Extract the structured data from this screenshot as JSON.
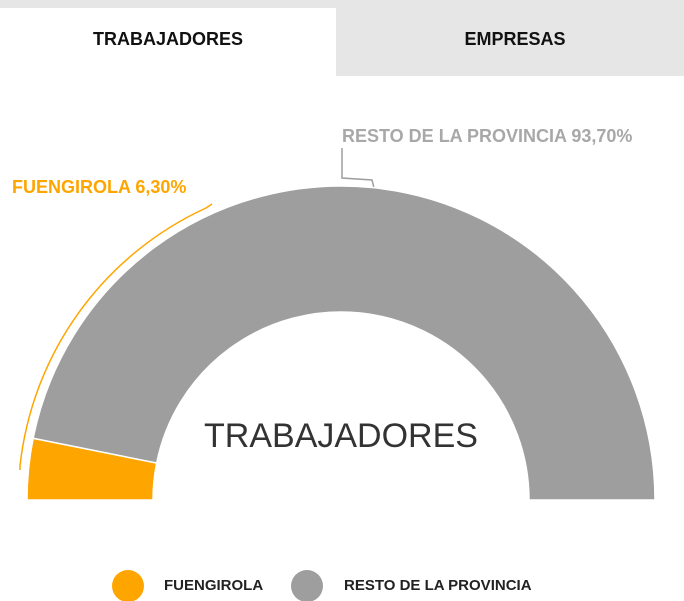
{
  "tabs": [
    "TRABAJADORES",
    "EMPRESAS"
  ],
  "chart_data": {
    "type": "pie",
    "subtype": "semi-donut",
    "center_label": "TRABAJADORES",
    "categories": [
      "FUENGIROLA",
      "RESTO DE LA PROVINCIA"
    ],
    "values": [
      6.3,
      93.7
    ],
    "value_labels": [
      "6,30%",
      "93,70%"
    ],
    "colors": [
      "#ffa500",
      "#9e9e9e"
    ],
    "legend": "bottom"
  }
}
